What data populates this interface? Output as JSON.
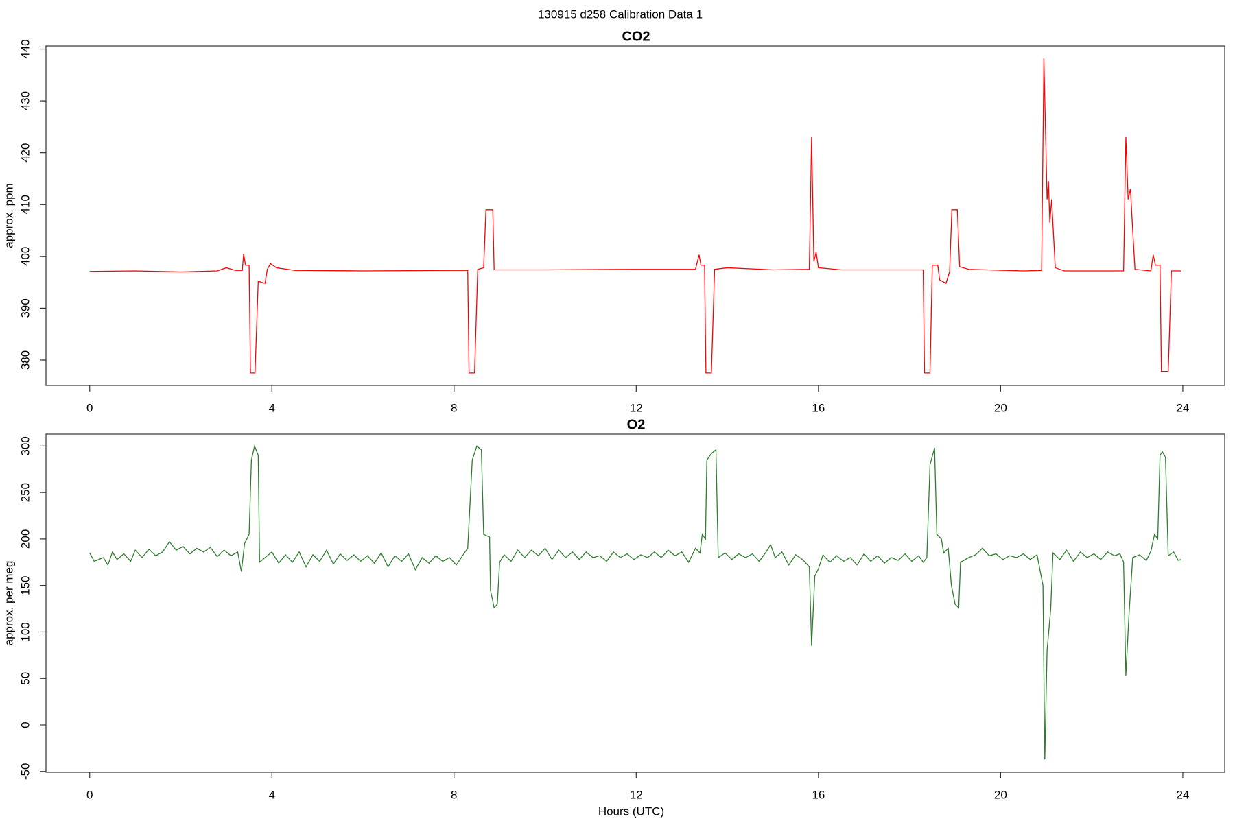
{
  "title": "130915   d258   Calibration Data 1",
  "chart_data": [
    {
      "type": "line",
      "title": "CO2",
      "ylabel": "approx. ppm",
      "xlim": [
        -0.96,
        24.92
      ],
      "xticks": [
        0,
        4,
        8,
        12,
        16,
        20,
        24
      ],
      "ylim": [
        375.1,
        440.6
      ],
      "yticks": [
        380,
        390,
        400,
        410,
        420,
        430,
        440
      ],
      "x": [
        0,
        1,
        2,
        2.8,
        3.0,
        3.2,
        3.35,
        3.38,
        3.42,
        3.5,
        3.53,
        3.63,
        3.7,
        3.85,
        3.9,
        3.97,
        4.1,
        4.5,
        6,
        8,
        8.3,
        8.33,
        8.45,
        8.52,
        8.65,
        8.7,
        8.85,
        8.88,
        10,
        12,
        13.3,
        13.38,
        13.42,
        13.5,
        13.53,
        13.65,
        13.72,
        14,
        15,
        15.8,
        15.85,
        15.9,
        15.95,
        16,
        16.5,
        18.3,
        18.33,
        18.45,
        18.5,
        18.62,
        18.66,
        18.8,
        18.88,
        18.93,
        19.05,
        19.1,
        19.3,
        20.5,
        20.9,
        20.95,
        21.02,
        21.05,
        21.08,
        21.12,
        21.2,
        21.4,
        22.7,
        22.75,
        22.8,
        22.85,
        22.9,
        22.95,
        23.3,
        23.35,
        23.4,
        23.5,
        23.53,
        23.68,
        23.75,
        23.96
      ],
      "series": [
        {
          "color": "#ff0000",
          "values": [
            397.1,
            397.2,
            397.0,
            397.2,
            397.8,
            397.3,
            397.3,
            400.5,
            398.3,
            398.3,
            377.5,
            377.5,
            395.2,
            394.8,
            397.5,
            398.6,
            397.8,
            397.3,
            397.2,
            397.3,
            397.3,
            377.5,
            377.5,
            397.5,
            397.8,
            409,
            409,
            397.4,
            397.4,
            397.5,
            397.5,
            400.3,
            398.3,
            398.3,
            377.5,
            377.5,
            397.5,
            397.8,
            397.4,
            397.5,
            423,
            399,
            400.8,
            397.8,
            397.4,
            397.4,
            377.5,
            377.5,
            398.3,
            398.3,
            395.5,
            394.8,
            397,
            409,
            409,
            398,
            397.5,
            397.2,
            397.3,
            438.2,
            411,
            414.5,
            406.5,
            411,
            397.8,
            397.2,
            397.2,
            423,
            411,
            413,
            405,
            397.5,
            397.2,
            400.3,
            398.3,
            398.3,
            377.8,
            377.8,
            397.2,
            397.2
          ]
        }
      ]
    },
    {
      "type": "line",
      "title": "O2",
      "ylabel": "approx. per meg",
      "xlabel": "Hours (UTC)",
      "xlim": [
        -0.96,
        24.92
      ],
      "xticks": [
        0,
        4,
        8,
        12,
        16,
        20,
        24
      ],
      "ylim": [
        -50.9,
        312.8
      ],
      "yticks": [
        -50,
        0,
        50,
        100,
        150,
        200,
        250,
        300
      ],
      "x": [
        0,
        0.1,
        0.2,
        0.3,
        0.4,
        0.5,
        0.6,
        0.75,
        0.9,
        1.0,
        1.15,
        1.3,
        1.45,
        1.6,
        1.75,
        1.9,
        2.05,
        2.2,
        2.35,
        2.5,
        2.65,
        2.8,
        2.95,
        3.1,
        3.25,
        3.33,
        3.4,
        3.5,
        3.55,
        3.62,
        3.7,
        3.73,
        3.85,
        4.0,
        4.15,
        4.3,
        4.45,
        4.6,
        4.75,
        4.9,
        5.05,
        5.2,
        5.35,
        5.5,
        5.65,
        5.8,
        5.95,
        6.1,
        6.25,
        6.4,
        6.55,
        6.7,
        6.85,
        7.0,
        7.15,
        7.3,
        7.45,
        7.6,
        7.75,
        7.9,
        8.05,
        8.2,
        8.3,
        8.4,
        8.5,
        8.6,
        8.65,
        8.78,
        8.8,
        8.88,
        8.95,
        9.0,
        9.1,
        9.25,
        9.4,
        9.55,
        9.7,
        9.85,
        10.0,
        10.15,
        10.3,
        10.45,
        10.6,
        10.75,
        10.9,
        11.05,
        11.2,
        11.35,
        11.5,
        11.65,
        11.8,
        11.95,
        12.1,
        12.25,
        12.4,
        12.55,
        12.7,
        12.85,
        13.0,
        13.15,
        13.3,
        13.4,
        13.45,
        13.52,
        13.55,
        13.65,
        13.75,
        13.8,
        13.95,
        14.1,
        14.25,
        14.4,
        14.55,
        14.7,
        14.85,
        14.95,
        15.05,
        15.2,
        15.35,
        15.5,
        15.65,
        15.8,
        15.85,
        15.92,
        16.0,
        16.1,
        16.25,
        16.4,
        16.55,
        16.7,
        16.85,
        17.0,
        17.15,
        17.3,
        17.45,
        17.6,
        17.75,
        17.9,
        18.05,
        18.2,
        18.3,
        18.38,
        18.45,
        18.55,
        18.6,
        18.7,
        18.75,
        18.85,
        18.92,
        19.0,
        19.08,
        19.12,
        19.3,
        19.45,
        19.6,
        19.75,
        19.9,
        20.05,
        20.2,
        20.35,
        20.5,
        20.65,
        20.8,
        20.93,
        20.97,
        21.02,
        21.1,
        21.15,
        21.3,
        21.45,
        21.6,
        21.75,
        21.9,
        22.05,
        22.2,
        22.35,
        22.5,
        22.62,
        22.7,
        22.75,
        22.82,
        22.9,
        23.05,
        23.2,
        23.3,
        23.38,
        23.45,
        23.5,
        23.55,
        23.62,
        23.68,
        23.8,
        23.9,
        23.96
      ],
      "series": [
        {
          "color": "#2e7d2e",
          "values": [
            185,
            176,
            178,
            180,
            172,
            186,
            178,
            184,
            176,
            188,
            180,
            189,
            182,
            186,
            197,
            188,
            192,
            184,
            190,
            186,
            191,
            181,
            188,
            182,
            186,
            165,
            195,
            205,
            285,
            300,
            290,
            175,
            180,
            186,
            174,
            183,
            175,
            186,
            170,
            183,
            176,
            188,
            173,
            184,
            177,
            183,
            176,
            182,
            174,
            185,
            170,
            182,
            176,
            184,
            167,
            180,
            174,
            182,
            176,
            180,
            172,
            183,
            190,
            285,
            300,
            296,
            205,
            202,
            145,
            126,
            130,
            175,
            183,
            176,
            188,
            180,
            188,
            182,
            190,
            178,
            188,
            180,
            186,
            178,
            186,
            180,
            182,
            176,
            186,
            180,
            184,
            178,
            183,
            180,
            186,
            180,
            188,
            182,
            186,
            175,
            190,
            185,
            205,
            200,
            285,
            292,
            296,
            180,
            185,
            178,
            184,
            180,
            184,
            176,
            186,
            194,
            180,
            186,
            172,
            183,
            178,
            170,
            85,
            160,
            168,
            183,
            175,
            182,
            176,
            180,
            172,
            184,
            176,
            182,
            174,
            180,
            177,
            184,
            176,
            182,
            175,
            180,
            280,
            298,
            205,
            200,
            185,
            190,
            150,
            130,
            126,
            175,
            180,
            183,
            190,
            182,
            184,
            178,
            182,
            180,
            184,
            178,
            183,
            150,
            -37,
            80,
            125,
            185,
            178,
            188,
            176,
            186,
            180,
            184,
            178,
            186,
            182,
            184,
            175,
            53,
            120,
            180,
            183,
            177,
            187,
            205,
            200,
            290,
            294,
            288,
            182,
            186,
            177,
            178
          ]
        }
      ]
    }
  ]
}
